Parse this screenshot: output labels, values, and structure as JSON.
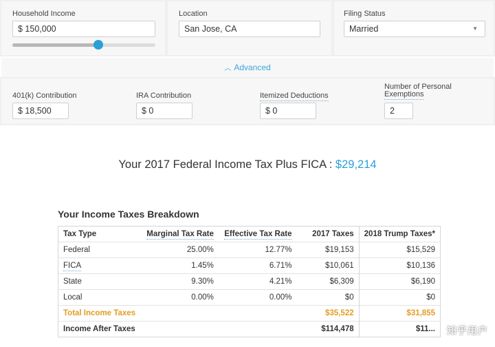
{
  "inputs": {
    "household_income": {
      "label": "Household Income",
      "value": "$ 150,000",
      "slider_fraction": 0.6
    },
    "location": {
      "label": "Location",
      "value": "San Jose, CA"
    },
    "filing_status": {
      "label": "Filing Status",
      "value": "Married"
    }
  },
  "advanced": {
    "label": "Advanced",
    "icon": "chevron-up-icon"
  },
  "advanced_fields": {
    "k401": {
      "label": "401(k) Contribution",
      "value": "$ 18,500"
    },
    "ira": {
      "label": "IRA Contribution",
      "value": "$ 0"
    },
    "itemized": {
      "label": "Itemized Deductions",
      "value": "$ 0"
    },
    "exemptions": {
      "label_line1": "Number of Personal",
      "label_line2": "Exemptions",
      "value": "2"
    }
  },
  "headline": {
    "text": "Your 2017 Federal Income Tax Plus FICA : ",
    "amount": "$29,214"
  },
  "breakdown": {
    "title": "Your Income Taxes Breakdown",
    "headers": [
      "Tax Type",
      "Marginal Tax Rate",
      "Effective Tax Rate",
      "2017 Taxes",
      "2018 Trump Taxes*"
    ],
    "rows": [
      [
        "Federal",
        "25.00%",
        "12.77%",
        "$19,153",
        "$15,529"
      ],
      [
        "FICA",
        "1.45%",
        "6.71%",
        "$10,061",
        "$10,136"
      ],
      [
        "State",
        "9.30%",
        "4.21%",
        "$6,309",
        "$6,190"
      ],
      [
        "Local",
        "0.00%",
        "0.00%",
        "$0",
        "$0"
      ]
    ],
    "total": [
      "Total Income Taxes",
      "",
      "",
      "$35,522",
      "$31,855"
    ],
    "after": [
      "Income After Taxes",
      "",
      "",
      "$114,478",
      "$11..."
    ]
  },
  "watermark": "知乎用户",
  "colors": {
    "accent": "#2a9fd8",
    "total": "#e39d22"
  }
}
